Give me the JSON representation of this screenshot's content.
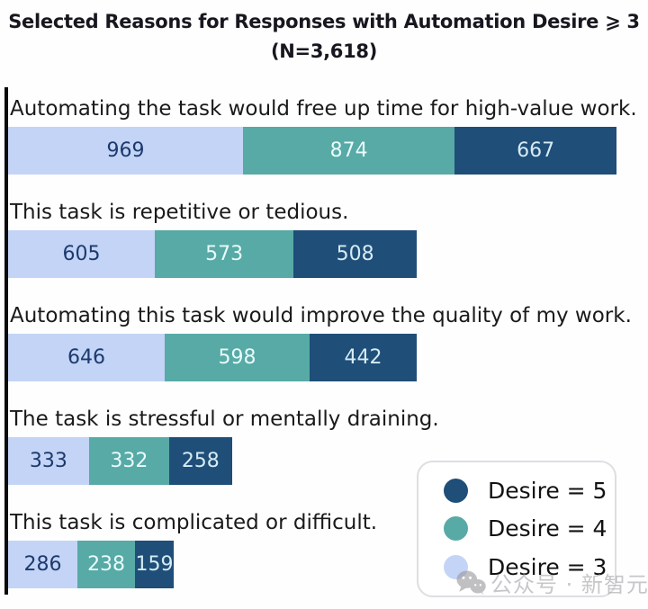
{
  "title": {
    "line1": "Selected Reasons for Responses with Automation Desire ⩾ 3",
    "line2": "(N=3,618)"
  },
  "chart_data": {
    "type": "bar",
    "orientation": "horizontal",
    "stacked": true,
    "title": "Selected Reasons for Responses with Automation Desire ⩾ 3 (N=3,618)",
    "categories": [
      "Automating the task would free up time for high-value work.",
      "This task is repetitive or tedious.",
      "Automating this task would improve the quality of my work.",
      "The task is stressful or mentally draining.",
      "This task is complicated or difficult."
    ],
    "series": [
      {
        "name": "Desire = 3",
        "color": "#c3d4f6",
        "text_color": "#1d3a6e",
        "values": [
          969,
          605,
          646,
          333,
          286
        ]
      },
      {
        "name": "Desire = 4",
        "color": "#57aaa6",
        "text_color": "#e9fbfa",
        "values": [
          874,
          573,
          598,
          332,
          238
        ]
      },
      {
        "name": "Desire = 5",
        "color": "#1f4e79",
        "text_color": "#d6ebf2",
        "values": [
          667,
          508,
          442,
          258,
          159
        ]
      }
    ],
    "totals": [
      2510,
      1686,
      1686,
      923,
      683
    ],
    "xlim": [
      0,
      2510
    ],
    "value_labels": true,
    "grid": false,
    "legend": {
      "position": "bottom-right",
      "entries": [
        {
          "label": "Desire = 5",
          "color": "#1f4e79"
        },
        {
          "label": "Desire = 4",
          "color": "#57aaa6"
        },
        {
          "label": "Desire = 3",
          "color": "#c3d4f6"
        }
      ]
    },
    "colors": {
      "axis": "#0a0a0a",
      "label_text": "#1a1a1a",
      "title_text": "#17171f"
    }
  },
  "watermark": {
    "icon": "wechat-icon",
    "text": "公众号 · 新智元"
  }
}
